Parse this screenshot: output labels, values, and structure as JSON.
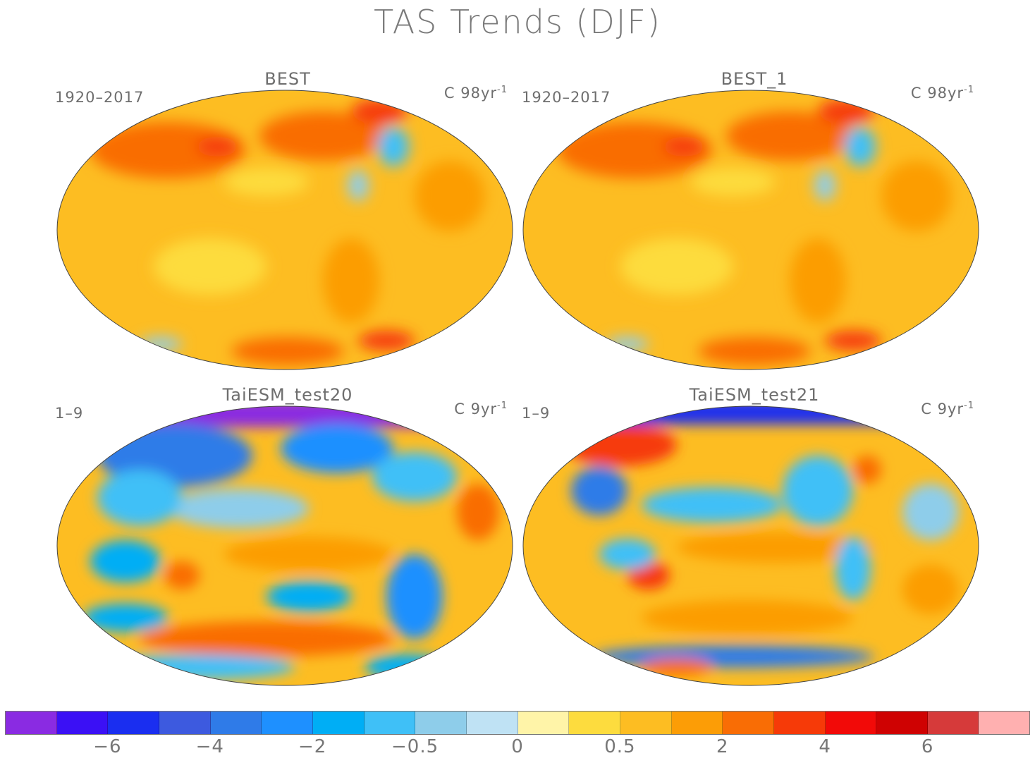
{
  "title": "TAS Trends (DJF)",
  "panels": [
    {
      "title": "BEST",
      "period": "1920–2017",
      "units": "C 98yr",
      "units_exp": "-1"
    },
    {
      "title": "BEST_1",
      "period": "1920–2017",
      "units": "C 98yr",
      "units_exp": "-1"
    },
    {
      "title": "TaiESM_test20",
      "period": "1–9",
      "units": "C 9yr",
      "units_exp": "-1"
    },
    {
      "title": "TaiESM_test21",
      "period": "1–9",
      "units": "C 9yr",
      "units_exp": "-1"
    }
  ],
  "colorbar": {
    "colors": [
      "#8a2be2",
      "#3b10f5",
      "#1a2ef0",
      "#3d5adf",
      "#2f7be8",
      "#1e90ff",
      "#00aef5",
      "#3fc0f7",
      "#8ecdea",
      "#bfe2f4",
      "#fff4a8",
      "#fddc3e",
      "#fdbd22",
      "#fc9d06",
      "#f96d05",
      "#f63a08",
      "#f20a08",
      "#cf0202",
      "#d63a3a",
      "#ffb0b0"
    ],
    "labels": [
      {
        "text": "−6",
        "index": 1
      },
      {
        "text": "−4",
        "index": 3
      },
      {
        "text": "−2",
        "index": 5
      },
      {
        "text": "−0.5",
        "index": 7
      },
      {
        "text": "0",
        "index": 9
      },
      {
        "text": "0.5",
        "index": 11
      },
      {
        "text": "2",
        "index": 13
      },
      {
        "text": "4",
        "index": 15
      },
      {
        "text": "6",
        "index": 17
      }
    ]
  }
}
